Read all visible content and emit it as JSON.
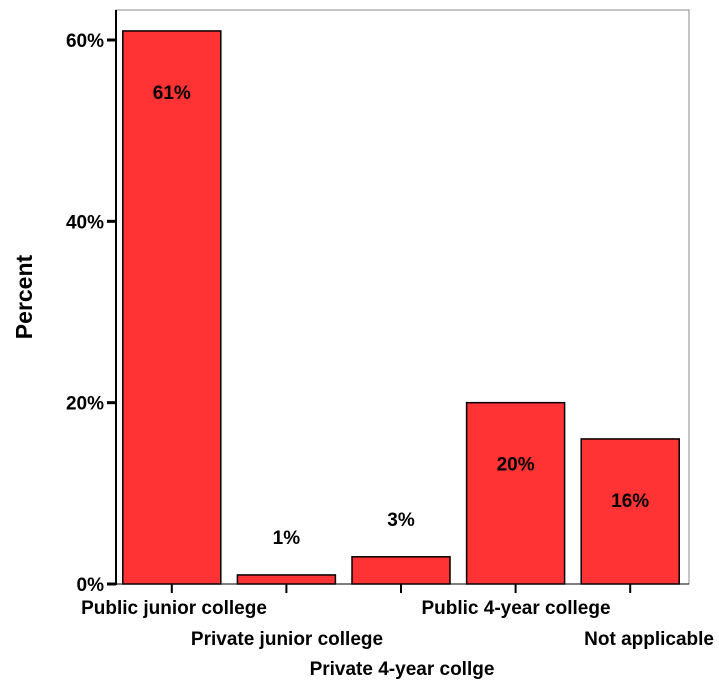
{
  "chart_data": {
    "type": "bar",
    "title": "",
    "xlabel": "",
    "ylabel": "Percent",
    "ylim": [
      0,
      63
    ],
    "yticks": [
      0,
      20,
      40,
      60
    ],
    "ytick_labels": [
      "0%",
      "20%",
      "40%",
      "60%"
    ],
    "categories": [
      "Public junior college",
      "Private junior college",
      "Private 4-year collge",
      "Public 4-year college",
      "Not applicable"
    ],
    "values": [
      61,
      1,
      3,
      20,
      16
    ],
    "data_labels": [
      "61%",
      "1%",
      "3%",
      "20%",
      "16%"
    ],
    "grid": false,
    "legend": "none",
    "colors": {
      "bar_fill": "#ff3333",
      "bar_stroke": "#000000",
      "frame": "#888888"
    }
  }
}
